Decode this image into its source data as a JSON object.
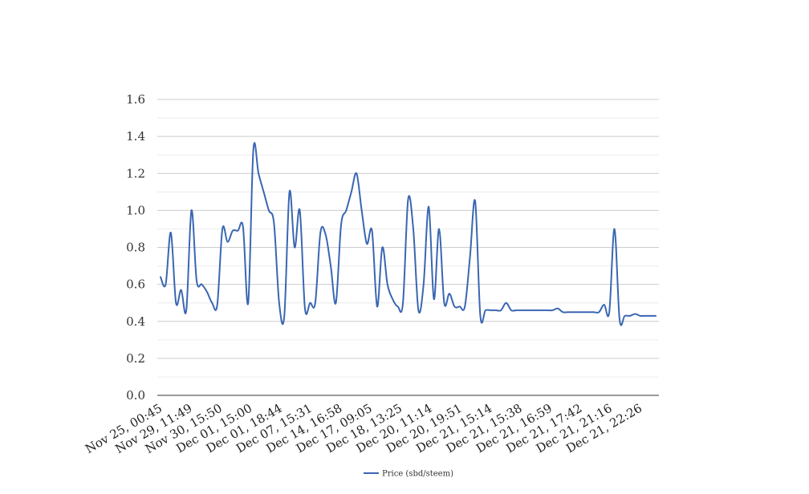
{
  "chart_data": {
    "type": "line",
    "title": "",
    "xlabel": "",
    "ylabel": "",
    "ylim": [
      0,
      1.6
    ],
    "yticks": [
      0.0,
      0.2,
      0.4,
      0.6,
      0.8,
      1.0,
      1.2,
      1.4,
      1.6
    ],
    "grid": "major and minor horizontal",
    "legend": "bottom-center",
    "x_tick_labels": [
      "Nov 25, 00:45",
      "Nov 29, 11:49",
      "Nov 30, 15:50",
      "Dec 01, 15:00",
      "Dec 01, 18:44",
      "Dec 07, 15:31",
      "Dec 14, 16:58",
      "Dec 17, 09:05",
      "Dec 18, 13:25",
      "Dec 20, 11:14",
      "Dec 20, 19:51",
      "Dec 21, 15:14",
      "Dec 21, 15:38",
      "Dec 21, 16:59",
      "Dec 21, 17:42",
      "Dec 21, 21:16",
      "Dec 21, 22:26"
    ],
    "series": [
      {
        "name": "Price (sbd/steem)",
        "color": "#3a66b2",
        "values": [
          0.64,
          0.6,
          0.88,
          0.5,
          0.57,
          0.46,
          1.0,
          0.62,
          0.6,
          0.56,
          0.5,
          0.49,
          0.9,
          0.83,
          0.89,
          0.89,
          0.91,
          0.5,
          1.33,
          1.2,
          1.1,
          1.0,
          0.93,
          0.5,
          0.43,
          1.1,
          0.8,
          1.0,
          0.47,
          0.5,
          0.5,
          0.88,
          0.87,
          0.7,
          0.5,
          0.92,
          1.0,
          1.1,
          1.2,
          1.0,
          0.82,
          0.89,
          0.48,
          0.8,
          0.6,
          0.52,
          0.48,
          0.5,
          1.06,
          0.9,
          0.46,
          0.6,
          1.02,
          0.52,
          0.9,
          0.5,
          0.55,
          0.48,
          0.48,
          0.48,
          0.75,
          1.05,
          0.43,
          0.46,
          0.46,
          0.46,
          0.46,
          0.5,
          0.46,
          0.46,
          0.46,
          0.46,
          0.46,
          0.46,
          0.46,
          0.46,
          0.46,
          0.47,
          0.45,
          0.45,
          0.45,
          0.45,
          0.45,
          0.45,
          0.45,
          0.45,
          0.49,
          0.45,
          0.9,
          0.41,
          0.43,
          0.43,
          0.44,
          0.43,
          0.43,
          0.43,
          0.43
        ]
      }
    ]
  }
}
